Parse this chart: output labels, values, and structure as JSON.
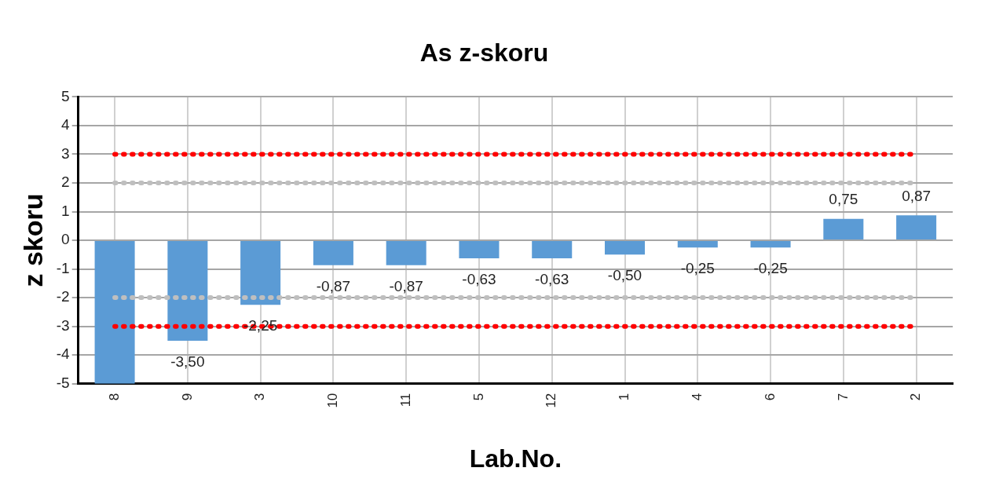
{
  "chart_data": {
    "type": "bar",
    "title": "As z-skoru",
    "xlabel": "Lab.No.",
    "ylabel": "z skoru",
    "categories": [
      "8",
      "9",
      "3",
      "10",
      "11",
      "5",
      "12",
      "1",
      "4",
      "6",
      "7",
      "2"
    ],
    "values": [
      -5,
      -3.5,
      -2.25,
      -0.87,
      -0.87,
      -0.63,
      -0.63,
      -0.5,
      -0.25,
      -0.25,
      0.75,
      0.87
    ],
    "value_labels": [
      null,
      "-3,50",
      "-2,25",
      "-0,87",
      "-0,87",
      "-0,63",
      "-0,63",
      "-0,50",
      "-0,25",
      "-0,25",
      "0,75",
      "0,87"
    ],
    "color": "#5b9bd5",
    "ylim": [
      -5,
      5
    ],
    "yticks": [
      -5,
      -4,
      -3,
      -2,
      -1,
      0,
      1,
      2,
      3,
      4,
      5
    ],
    "ref_lines": [
      {
        "axis": "y",
        "value": 3,
        "color": "#ff0000",
        "line_style": "dotted"
      },
      {
        "axis": "y",
        "value": -3,
        "color": "#ff0000",
        "line_style": "dotted"
      },
      {
        "axis": "y",
        "value": 2,
        "color": "#bfbfbf",
        "line_style": "dotted"
      },
      {
        "axis": "y",
        "value": -2,
        "color": "#bfbfbf",
        "line_style": "dotted"
      }
    ],
    "grid": true,
    "legend": false
  }
}
